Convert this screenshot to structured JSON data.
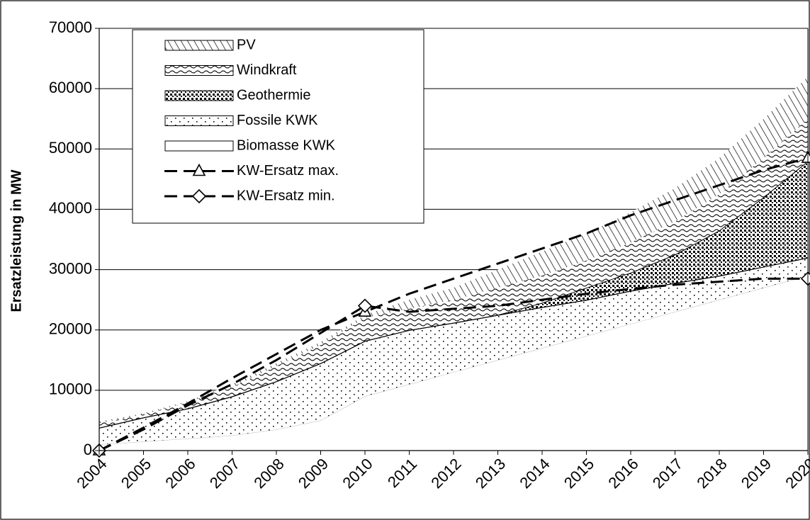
{
  "chart_data": {
    "type": "stacked_area",
    "y_label": "Ersatzleistung in MW",
    "categories": [
      "2004",
      "2005",
      "2006",
      "2007",
      "2008",
      "2009",
      "2010",
      "2011",
      "2012",
      "2013",
      "2014",
      "2015",
      "2016",
      "2017",
      "2018",
      "2019",
      "2020"
    ],
    "ylim": [
      0,
      70000
    ],
    "yticks": [
      0,
      10000,
      20000,
      30000,
      40000,
      50000,
      60000,
      70000
    ],
    "grid": true,
    "legend": "upper left",
    "series": [
      {
        "name": "Biomasse KWK",
        "color": "#ffffff",
        "values": [
          1000,
          1500,
          2000,
          2500,
          3500,
          5000,
          9000,
          11000,
          13000,
          15000,
          17000,
          19000,
          21000,
          23000,
          25000,
          27000,
          29000
        ]
      },
      {
        "name": "Fossile KWK",
        "color": "#000000",
        "values": [
          2800,
          4000,
          5000,
          6500,
          8000,
          9500,
          9200,
          9000,
          8200,
          7500,
          6800,
          6000,
          5500,
          4800,
          4000,
          3500,
          3000
        ]
      },
      {
        "name": "Geothermie",
        "color": "#000000",
        "values": [
          0,
          0,
          0,
          0,
          0,
          0,
          0,
          0,
          0,
          0,
          700,
          2000,
          3000,
          4700,
          7500,
          11500,
          16000
        ]
      },
      {
        "name": "Windkraft",
        "color": "#000000",
        "values": [
          700,
          500,
          1000,
          1500,
          2500,
          3000,
          3800,
          3500,
          3800,
          4500,
          4500,
          4500,
          5000,
          5500,
          6000,
          6500,
          7000
        ]
      },
      {
        "name": "PV",
        "color": "#000000",
        "values": [
          300,
          200,
          200,
          500,
          500,
          500,
          500,
          1500,
          2000,
          3000,
          4000,
          4500,
          5000,
          5500,
          6000,
          6500,
          7000
        ]
      }
    ],
    "lines": [
      {
        "name": "KW-Ersatz max.",
        "color": "#000000",
        "marker": "triangle",
        "marker_indices": [
          0,
          6,
          16
        ],
        "values": [
          0,
          3800,
          7800,
          12000,
          16000,
          20000,
          23000,
          26000,
          28500,
          31000,
          33500,
          36000,
          39000,
          41500,
          44000,
          46500,
          48500
        ]
      },
      {
        "name": "KW-Ersatz min.",
        "color": "#000000",
        "marker": "diamond",
        "marker_indices": [
          0,
          6,
          16
        ],
        "values": [
          0,
          3500,
          7500,
          11000,
          15000,
          19500,
          24000,
          23000,
          23500,
          24000,
          25000,
          26000,
          26800,
          27500,
          28000,
          28500,
          28500
        ]
      }
    ]
  }
}
